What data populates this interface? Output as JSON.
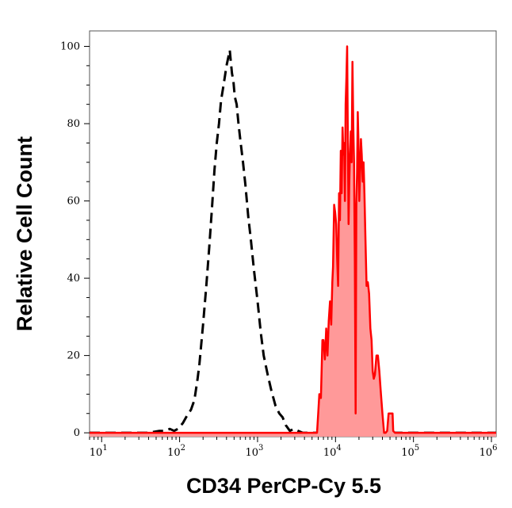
{
  "chart_data": {
    "type": "area",
    "title": "",
    "xlabel": "CD34 PerCP-Cy 5.5",
    "ylabel": "Relative Cell Count",
    "x_scale": "log",
    "xlim": [
      7,
      1150000
    ],
    "ylim": [
      -1,
      104
    ],
    "y_ticks": [
      0,
      20,
      40,
      60,
      80,
      100
    ],
    "x_ticks": [
      {
        "value": 10,
        "base": "10",
        "exp": "1"
      },
      {
        "value": 100,
        "base": "10",
        "exp": "2"
      },
      {
        "value": 1000,
        "base": "10",
        "exp": "3"
      },
      {
        "value": 10000,
        "base": "10",
        "exp": "4"
      },
      {
        "value": 100000,
        "base": "10",
        "exp": "5"
      },
      {
        "value": 1000000,
        "base": "10",
        "exp": "6"
      }
    ],
    "grid": false,
    "legend": "none",
    "series": [
      {
        "style": "dashed",
        "color": "#000000",
        "fill": false,
        "points": [
          [
            7,
            0
          ],
          [
            40,
            0
          ],
          [
            55,
            0.5
          ],
          [
            65,
            0.5
          ],
          [
            75,
            1
          ],
          [
            85,
            0.5
          ],
          [
            95,
            1
          ],
          [
            110,
            2.5
          ],
          [
            125,
            4.5
          ],
          [
            140,
            6
          ],
          [
            155,
            8.5
          ],
          [
            170,
            14
          ],
          [
            180,
            18
          ],
          [
            200,
            28
          ],
          [
            220,
            38
          ],
          [
            240,
            48
          ],
          [
            260,
            58
          ],
          [
            280,
            68
          ],
          [
            300,
            75
          ],
          [
            320,
            80
          ],
          [
            340,
            86
          ],
          [
            360,
            89
          ],
          [
            380,
            92
          ],
          [
            400,
            95
          ],
          [
            420,
            97
          ],
          [
            440,
            99
          ],
          [
            450,
            97
          ],
          [
            470,
            93
          ],
          [
            490,
            91
          ],
          [
            510,
            87
          ],
          [
            540,
            85
          ],
          [
            570,
            80
          ],
          [
            600,
            76
          ],
          [
            650,
            70
          ],
          [
            700,
            64
          ],
          [
            760,
            56
          ],
          [
            820,
            50
          ],
          [
            900,
            42
          ],
          [
            1000,
            34
          ],
          [
            1100,
            26
          ],
          [
            1200,
            20
          ],
          [
            1350,
            15
          ],
          [
            1500,
            11
          ],
          [
            1700,
            7
          ],
          [
            1900,
            5
          ],
          [
            2100,
            4
          ],
          [
            2300,
            2
          ],
          [
            2600,
            0.5
          ],
          [
            2900,
            1
          ],
          [
            3300,
            0.5
          ],
          [
            3800,
            0
          ],
          [
            1150000,
            0
          ]
        ]
      },
      {
        "style": "solid",
        "color": "#ff0000",
        "fill": true,
        "fill_color": "#ff9999",
        "points": [
          [
            7,
            0
          ],
          [
            5800,
            0
          ],
          [
            6000,
            5
          ],
          [
            6200,
            10
          ],
          [
            6500,
            9
          ],
          [
            6800,
            24
          ],
          [
            7000,
            24
          ],
          [
            7300,
            19
          ],
          [
            7600,
            27
          ],
          [
            7900,
            20
          ],
          [
            8200,
            29
          ],
          [
            8500,
            34
          ],
          [
            8800,
            28
          ],
          [
            9100,
            39
          ],
          [
            9300,
            43
          ],
          [
            9600,
            59
          ],
          [
            9900,
            57
          ],
          [
            10200,
            54
          ],
          [
            10500,
            45
          ],
          [
            10800,
            38
          ],
          [
            11100,
            62
          ],
          [
            11400,
            55
          ],
          [
            11700,
            73
          ],
          [
            12000,
            62
          ],
          [
            12300,
            79
          ],
          [
            12600,
            72
          ],
          [
            12900,
            75
          ],
          [
            13200,
            60
          ],
          [
            13500,
            85
          ],
          [
            13800,
            92
          ],
          [
            14100,
            100
          ],
          [
            14400,
            75
          ],
          [
            14700,
            54
          ],
          [
            15000,
            64
          ],
          [
            15300,
            72
          ],
          [
            15700,
            78
          ],
          [
            16100,
            70
          ],
          [
            16500,
            96
          ],
          [
            16900,
            80
          ],
          [
            17300,
            70
          ],
          [
            17700,
            45
          ],
          [
            18100,
            5
          ],
          [
            18500,
            59
          ],
          [
            18900,
            67
          ],
          [
            19300,
            83
          ],
          [
            19700,
            75
          ],
          [
            20200,
            60
          ],
          [
            20700,
            68
          ],
          [
            21200,
            76
          ],
          [
            21700,
            72
          ],
          [
            22300,
            65
          ],
          [
            22900,
            70
          ],
          [
            23500,
            62
          ],
          [
            24200,
            50
          ],
          [
            25000,
            38
          ],
          [
            26000,
            39
          ],
          [
            27000,
            36
          ],
          [
            28000,
            27
          ],
          [
            29000,
            24
          ],
          [
            30000,
            16
          ],
          [
            31000,
            14
          ],
          [
            32000,
            15
          ],
          [
            33500,
            20
          ],
          [
            35000,
            20
          ],
          [
            36500,
            16
          ],
          [
            38000,
            11
          ],
          [
            40000,
            5
          ],
          [
            42000,
            0
          ],
          [
            44000,
            0
          ],
          [
            46000,
            0.5
          ],
          [
            48000,
            5
          ],
          [
            54000,
            5
          ],
          [
            55000,
            0.5
          ],
          [
            58000,
            0
          ],
          [
            1150000,
            0
          ]
        ]
      }
    ]
  }
}
